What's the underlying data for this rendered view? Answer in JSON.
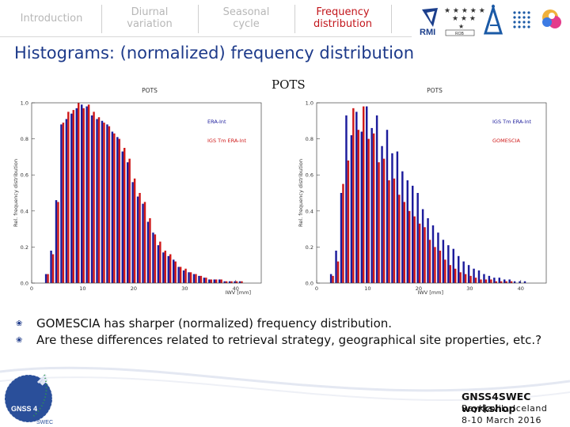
{
  "tabs": [
    {
      "label_line1": "Introduction",
      "label_line2": ""
    },
    {
      "label_line1": "Diurnal",
      "label_line2": "variation"
    },
    {
      "label_line1": "Seasonal",
      "label_line2": "cycle"
    },
    {
      "label_line1": "Frequency",
      "label_line2": "distribution"
    }
  ],
  "logos": {
    "rmi": "RMI",
    "rob": "ROB"
  },
  "slide_title": "Histograms: (normalized) frequency distribution",
  "station": "POTS",
  "bullets": [
    "GOMESCIA has sharper (normalized) frequency distribution.",
    "Are these differences related to retrieval strategy, geographical site properties, etc.?"
  ],
  "footer": {
    "workshop": "GNSS4SWEC workshop",
    "place": "Reykjavik, Iceland",
    "dates": "8-10 March 2016",
    "logo_text_main": "GNSS 4",
    "logo_text_sub": "SWEC"
  },
  "colors": {
    "blue": "#1c1c9c",
    "red": "#cf1a1a",
    "title": "#1d3a8a",
    "active_tab": "#c2151b"
  },
  "chart_data": [
    {
      "type": "bar",
      "title": "POTS",
      "xlabel": "IWV [mm]",
      "ylabel": "Rel. frequency distribution",
      "xlim": [
        0,
        45
      ],
      "ylim": [
        0,
        1.0
      ],
      "xticks": [
        "0",
        "10",
        "20",
        "30",
        "40"
      ],
      "yticks": [
        "0.0",
        "0.2",
        "0.4",
        "0.6",
        "0.8",
        "1.0"
      ],
      "legend_position": "right",
      "x": [
        3,
        4,
        5,
        6,
        7,
        8,
        9,
        10,
        11,
        12,
        13,
        14,
        15,
        16,
        17,
        18,
        19,
        20,
        21,
        22,
        23,
        24,
        25,
        26,
        27,
        28,
        29,
        30,
        31,
        32,
        33,
        34,
        35,
        36,
        37,
        38,
        39,
        40,
        41
      ],
      "series": [
        {
          "name": "ERA-Int",
          "color": "blue",
          "values": [
            0.05,
            0.18,
            0.46,
            0.88,
            0.91,
            0.94,
            0.97,
            0.99,
            0.98,
            0.93,
            0.91,
            0.9,
            0.88,
            0.84,
            0.81,
            0.73,
            0.67,
            0.56,
            0.48,
            0.44,
            0.34,
            0.28,
            0.21,
            0.17,
            0.15,
            0.13,
            0.09,
            0.07,
            0.06,
            0.05,
            0.04,
            0.03,
            0.02,
            0.02,
            0.02,
            0.01,
            0.01,
            0.01,
            0.01
          ]
        },
        {
          "name": "IGS Tm ERA-Int",
          "color": "red",
          "values": [
            0.05,
            0.16,
            0.45,
            0.89,
            0.95,
            0.96,
            1.0,
            0.97,
            0.99,
            0.95,
            0.92,
            0.89,
            0.87,
            0.83,
            0.8,
            0.75,
            0.69,
            0.58,
            0.5,
            0.45,
            0.36,
            0.27,
            0.23,
            0.18,
            0.16,
            0.12,
            0.09,
            0.08,
            0.06,
            0.05,
            0.04,
            0.03,
            0.02,
            0.02,
            0.02,
            0.01,
            0.01,
            0.01,
            0.01
          ]
        }
      ]
    },
    {
      "type": "bar",
      "title": "POTS",
      "xlabel": "IWV [mm]",
      "ylabel": "Rel. frequency distribution",
      "xlim": [
        0,
        45
      ],
      "ylim": [
        0,
        1.0
      ],
      "xticks": [
        "0",
        "10",
        "20",
        "30",
        "40"
      ],
      "yticks": [
        "0.0",
        "0.2",
        "0.4",
        "0.6",
        "0.8",
        "1.0"
      ],
      "legend_position": "right",
      "x": [
        3,
        4,
        5,
        6,
        7,
        8,
        9,
        10,
        11,
        12,
        13,
        14,
        15,
        16,
        17,
        18,
        19,
        20,
        21,
        22,
        23,
        24,
        25,
        26,
        27,
        28,
        29,
        30,
        31,
        32,
        33,
        34,
        35,
        36,
        37,
        38,
        39,
        40,
        41
      ],
      "series": [
        {
          "name": "IGS Tm ERA-Int",
          "color": "blue",
          "values": [
            0.05,
            0.18,
            0.5,
            0.93,
            0.82,
            0.95,
            0.84,
            0.98,
            0.86,
            0.93,
            0.76,
            0.85,
            0.72,
            0.73,
            0.62,
            0.57,
            0.54,
            0.5,
            0.41,
            0.36,
            0.32,
            0.28,
            0.24,
            0.21,
            0.19,
            0.15,
            0.12,
            0.1,
            0.08,
            0.07,
            0.05,
            0.04,
            0.03,
            0.03,
            0.02,
            0.02,
            0.01,
            0.01,
            0.01
          ]
        },
        {
          "name": "GOMESCIA",
          "color": "red",
          "values": [
            0.04,
            0.12,
            0.55,
            0.68,
            0.97,
            0.85,
            0.98,
            0.8,
            0.83,
            0.67,
            0.69,
            0.57,
            0.58,
            0.49,
            0.45,
            0.4,
            0.37,
            0.33,
            0.31,
            0.24,
            0.2,
            0.18,
            0.13,
            0.1,
            0.08,
            0.06,
            0.05,
            0.04,
            0.03,
            0.02,
            0.02,
            0.02,
            0.01,
            0.01,
            0.01,
            0.01,
            0.0,
            0.0,
            0.0
          ]
        }
      ]
    }
  ]
}
